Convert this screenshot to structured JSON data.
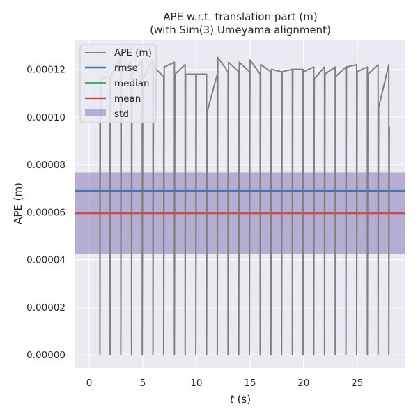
{
  "chart_data": {
    "type": "line",
    "title": "APE w.r.t. translation part (m)",
    "subtitle": "(with Sim(3) Umeyama alignment)",
    "xlabel_var": "t",
    "xlabel_unit": " (s)",
    "ylabel": "APE (m)",
    "xlim": [
      -1.3,
      29.5
    ],
    "ylim": [
      -5.5e-06,
      0.0001325
    ],
    "xticks": [
      0,
      5,
      10,
      15,
      20,
      25
    ],
    "xtick_labels": [
      "0",
      "5",
      "10",
      "15",
      "20",
      "25"
    ],
    "yticks": [
      0,
      2e-05,
      4e-05,
      6e-05,
      8e-05,
      0.0001,
      0.00012
    ],
    "ytick_labels": [
      "0.00000",
      "0.00002",
      "0.00004",
      "0.00006",
      "0.00008",
      "0.00010",
      "0.00012"
    ],
    "grid": true,
    "legend_position": "top-left",
    "series": [
      {
        "name": "APE (m)",
        "color": "#808080",
        "x": [
          1.0,
          1.0,
          1.05,
          1.95,
          1.95,
          2.0,
          2.95,
          2.95,
          3.0,
          3.95,
          3.95,
          4.0,
          4.95,
          4.95,
          5.0,
          5.95,
          5.95,
          6.0,
          6.95,
          6.95,
          7.0,
          7.95,
          7.95,
          8.0,
          8.95,
          8.95,
          9.0,
          9.95,
          9.95,
          10.0,
          10.95,
          10.95,
          11.0,
          11.95,
          11.95,
          12.0,
          12.95,
          12.95,
          13.0,
          13.95,
          13.95,
          14.0,
          14.95,
          14.95,
          15.0,
          15.95,
          15.95,
          16.0,
          16.95,
          16.95,
          17.0,
          17.95,
          17.95,
          18.0,
          18.95,
          18.95,
          19.0,
          19.95,
          19.95,
          20.0,
          20.95,
          20.95,
          21.0,
          21.95,
          21.95,
          22.0,
          22.95,
          22.95,
          23.0,
          23.95,
          23.95,
          24.0,
          24.95,
          24.95,
          25.0,
          25.95,
          25.95,
          26.0,
          26.95,
          26.95,
          27.0,
          27.95,
          27.95,
          28.0
        ],
        "values": [
          9.9e-05,
          0.0,
          0.000116,
          0.000117,
          0.0,
          0.000117,
          0.000125,
          0.0,
          0.000119,
          0.000123,
          0.0,
          0.000118,
          0.000124,
          0.0,
          0.000116,
          0.000124,
          0.0,
          0.000121,
          0.000117,
          0.0,
          0.000121,
          0.000123,
          0.0,
          0.000118,
          0.000122,
          0.0,
          0.000118,
          0.000118,
          0.0,
          0.000118,
          0.000118,
          0.0,
          0.000102,
          0.000118,
          0.0,
          0.000125,
          0.000119,
          0.0,
          0.000123,
          0.000119,
          0.0,
          0.000123,
          0.000119,
          0.0,
          0.000124,
          0.000118,
          0.0,
          0.000122,
          0.000119,
          0.0,
          0.00012,
          0.000119,
          0.0,
          0.000119,
          0.00012,
          0.0,
          0.00012,
          0.00012,
          0.0,
          0.000119,
          0.000121,
          0.0,
          0.000116,
          0.000121,
          0.0,
          0.000118,
          0.000121,
          0.0,
          0.000117,
          0.000121,
          0.0,
          0.000121,
          0.000122,
          0.0,
          0.000119,
          0.000121,
          0.0,
          0.000118,
          0.000122,
          0.0,
          0.000104,
          0.000122,
          0.0,
          9.6e-05
        ]
      }
    ],
    "rmse": {
      "name": "rmse",
      "value": 6.89e-05,
      "color": "#4C72B0"
    },
    "median": {
      "name": "median",
      "value": 5.97e-05,
      "color": "#55A868"
    },
    "mean": {
      "name": "mean",
      "value": 5.95e-05,
      "color": "#C44E52"
    },
    "std": {
      "name": "std",
      "lower": 4.24e-05,
      "upper": 7.67e-05,
      "color": "#8172B2"
    },
    "colors": {
      "background": "#EAEAF2",
      "grid": "#FFFFFF",
      "text": "#262626"
    }
  }
}
